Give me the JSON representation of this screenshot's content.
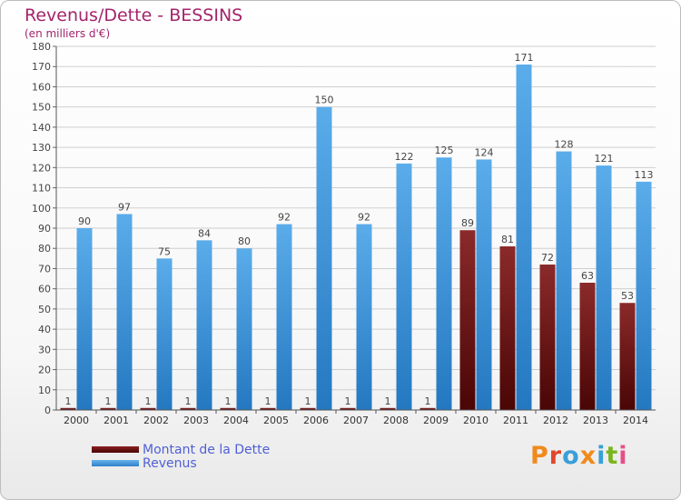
{
  "header": {
    "title": "Revenus/Dette - BESSINS",
    "subtitle": "(en milliers d'€)"
  },
  "legend": {
    "debt_label": "Montant de la Dette",
    "revenue_label": "Revenus"
  },
  "logo": {
    "text": "Proxiti",
    "letter_colors": [
      "#f08a1c",
      "#e0472a",
      "#3a9fd8",
      "#f08a1c",
      "#3a9fd8",
      "#7ab51d",
      "#e84e8a"
    ]
  },
  "colors": {
    "title": "#a3246b",
    "debt_top": "#8b2a2a",
    "debt_bottom": "#4a0505",
    "revenue_top": "#5aacea",
    "revenue_bottom": "#2478c0",
    "legend_text": "#4f5fd6"
  },
  "chart_data": {
    "type": "bar",
    "categories": [
      "2000",
      "2001",
      "2002",
      "2003",
      "2004",
      "2005",
      "2006",
      "2007",
      "2008",
      "2009",
      "2010",
      "2011",
      "2012",
      "2013",
      "2014"
    ],
    "series": [
      {
        "name": "Montant de la Dette",
        "values": [
          1,
          1,
          1,
          1,
          1,
          1,
          1,
          1,
          1,
          1,
          89,
          81,
          72,
          63,
          53
        ]
      },
      {
        "name": "Revenus",
        "values": [
          90,
          97,
          75,
          84,
          80,
          92,
          150,
          92,
          122,
          125,
          124,
          171,
          128,
          121,
          113
        ]
      }
    ],
    "title": "Revenus/Dette - BESSINS",
    "ylabel": "(en milliers d'€)",
    "xlabel": "",
    "ylim": [
      0,
      180
    ],
    "yticks": [
      0,
      10,
      20,
      30,
      40,
      50,
      60,
      70,
      80,
      90,
      100,
      110,
      120,
      130,
      140,
      150,
      160,
      170,
      180
    ],
    "grid": true,
    "legend_position": "bottom-left"
  }
}
